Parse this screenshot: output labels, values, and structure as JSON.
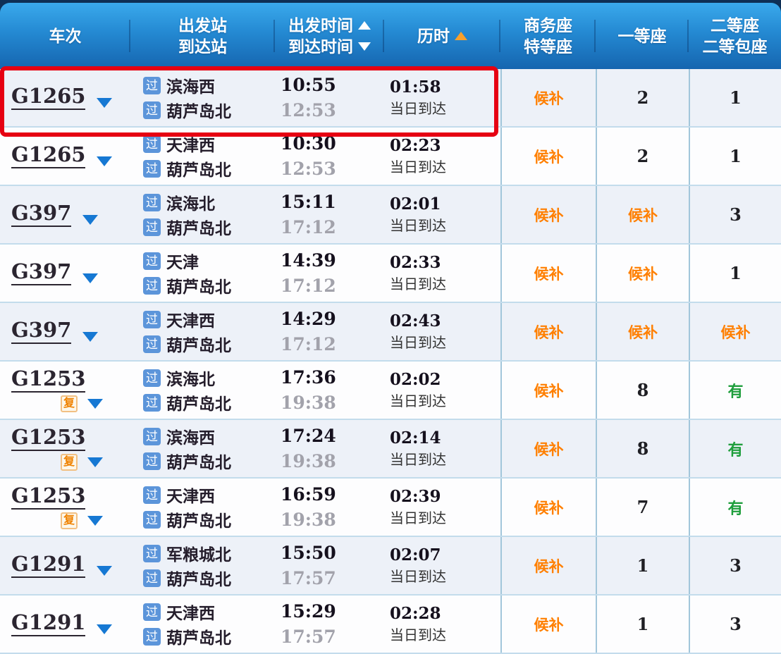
{
  "table": {
    "header": {
      "train": "车次",
      "station_lines": [
        "出发站",
        "到达站"
      ],
      "time_lines": [
        "出发时间",
        "到达时间"
      ],
      "duration": "历时",
      "business_lines": [
        "商务座",
        "特等座"
      ],
      "first": "一等座",
      "second_lines": [
        "二等座",
        "二等包座"
      ]
    },
    "badges": {
      "pass": "过",
      "fuxing": "复"
    },
    "icons": {
      "sort_ascending": "triangle-up",
      "sort_descending": "triangle-down",
      "duration_sort_active": "triangle-up-orange",
      "expand_row": "triangle-down-blue"
    },
    "colors": {
      "header_gradient_top": "#3aa9ec",
      "header_gradient_bottom": "#1565af",
      "header_frame_navy": "#0e2f55",
      "highlight_red": "#e60012",
      "waitlist_orange": "#ff7f00",
      "available_green": "#1f9e3c",
      "pass_badge_blue": "#5c95da",
      "row_alt_background": "#edf1f8"
    },
    "rows": [
      {
        "train": "G1265",
        "from": "滨海西",
        "to": "葫芦岛北",
        "depart": "10:55",
        "arrive": "12:53",
        "duration": "01:58",
        "arrive_note": "当日到达",
        "business": "候补",
        "first": "2",
        "second": "1",
        "highlighted": true,
        "fuxing": false
      },
      {
        "train": "G1265",
        "from": "天津西",
        "to": "葫芦岛北",
        "depart": "10:30",
        "arrive": "12:53",
        "duration": "02:23",
        "arrive_note": "当日到达",
        "business": "候补",
        "first": "2",
        "second": "1",
        "highlighted": false,
        "fuxing": false
      },
      {
        "train": "G397",
        "from": "滨海北",
        "to": "葫芦岛北",
        "depart": "15:11",
        "arrive": "17:12",
        "duration": "02:01",
        "arrive_note": "当日到达",
        "business": "候补",
        "first": "候补",
        "second": "3",
        "highlighted": false,
        "fuxing": false
      },
      {
        "train": "G397",
        "from": "天津",
        "to": "葫芦岛北",
        "depart": "14:39",
        "arrive": "17:12",
        "duration": "02:33",
        "arrive_note": "当日到达",
        "business": "候补",
        "first": "候补",
        "second": "1",
        "highlighted": false,
        "fuxing": false
      },
      {
        "train": "G397",
        "from": "天津西",
        "to": "葫芦岛北",
        "depart": "14:29",
        "arrive": "17:12",
        "duration": "02:43",
        "arrive_note": "当日到达",
        "business": "候补",
        "first": "候补",
        "second": "候补",
        "highlighted": false,
        "fuxing": false
      },
      {
        "train": "G1253",
        "from": "滨海北",
        "to": "葫芦岛北",
        "depart": "17:36",
        "arrive": "19:38",
        "duration": "02:02",
        "arrive_note": "当日到达",
        "business": "候补",
        "first": "8",
        "second": "有",
        "highlighted": false,
        "fuxing": true
      },
      {
        "train": "G1253",
        "from": "滨海西",
        "to": "葫芦岛北",
        "depart": "17:24",
        "arrive": "19:38",
        "duration": "02:14",
        "arrive_note": "当日到达",
        "business": "候补",
        "first": "8",
        "second": "有",
        "highlighted": false,
        "fuxing": true
      },
      {
        "train": "G1253",
        "from": "天津西",
        "to": "葫芦岛北",
        "depart": "16:59",
        "arrive": "19:38",
        "duration": "02:39",
        "arrive_note": "当日到达",
        "business": "候补",
        "first": "7",
        "second": "有",
        "highlighted": false,
        "fuxing": true
      },
      {
        "train": "G1291",
        "from": "军粮城北",
        "to": "葫芦岛北",
        "depart": "15:50",
        "arrive": "17:57",
        "duration": "02:07",
        "arrive_note": "当日到达",
        "business": "候补",
        "first": "1",
        "second": "3",
        "highlighted": false,
        "fuxing": false
      },
      {
        "train": "G1291",
        "from": "天津西",
        "to": "葫芦岛北",
        "depart": "15:29",
        "arrive": "17:57",
        "duration": "02:28",
        "arrive_note": "当日到达",
        "business": "候补",
        "first": "1",
        "second": "3",
        "highlighted": false,
        "fuxing": false
      }
    ]
  }
}
